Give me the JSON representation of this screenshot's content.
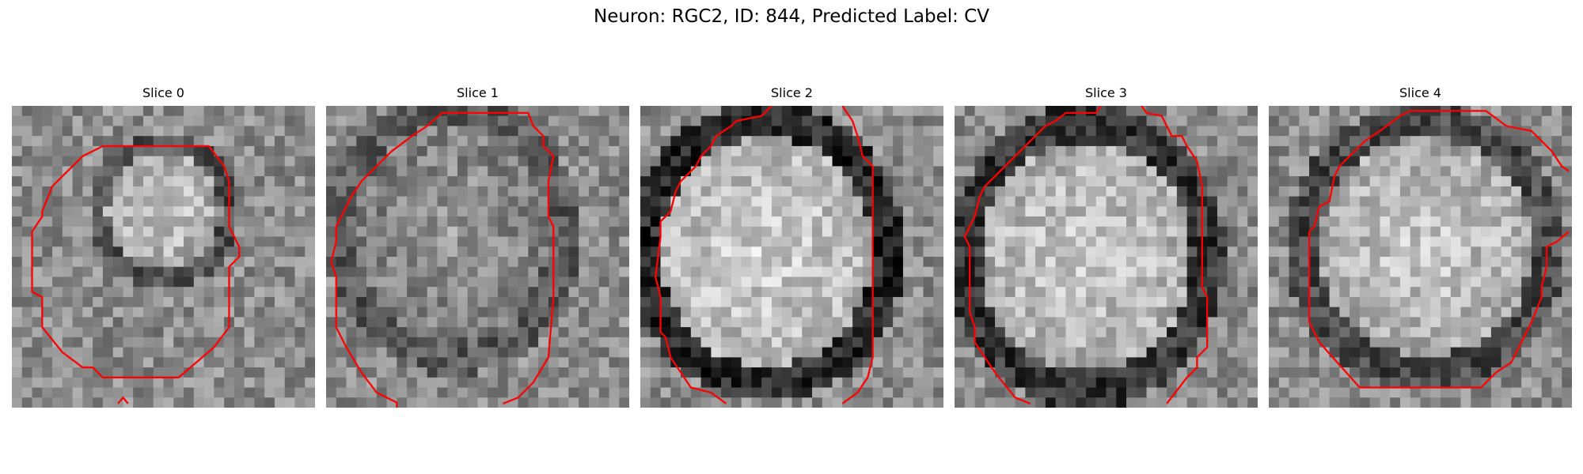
{
  "figure": {
    "title": "Neuron: RGC2, ID: 844, Predicted Label: CV",
    "colors": {
      "contour": "#ff0000",
      "background": "#ffffff"
    },
    "panels": [
      {
        "title": "Slice 0"
      },
      {
        "title": "Slice 1"
      },
      {
        "title": "Slice 2"
      },
      {
        "title": "Slice 3"
      },
      {
        "title": "Slice 4"
      }
    ]
  }
}
